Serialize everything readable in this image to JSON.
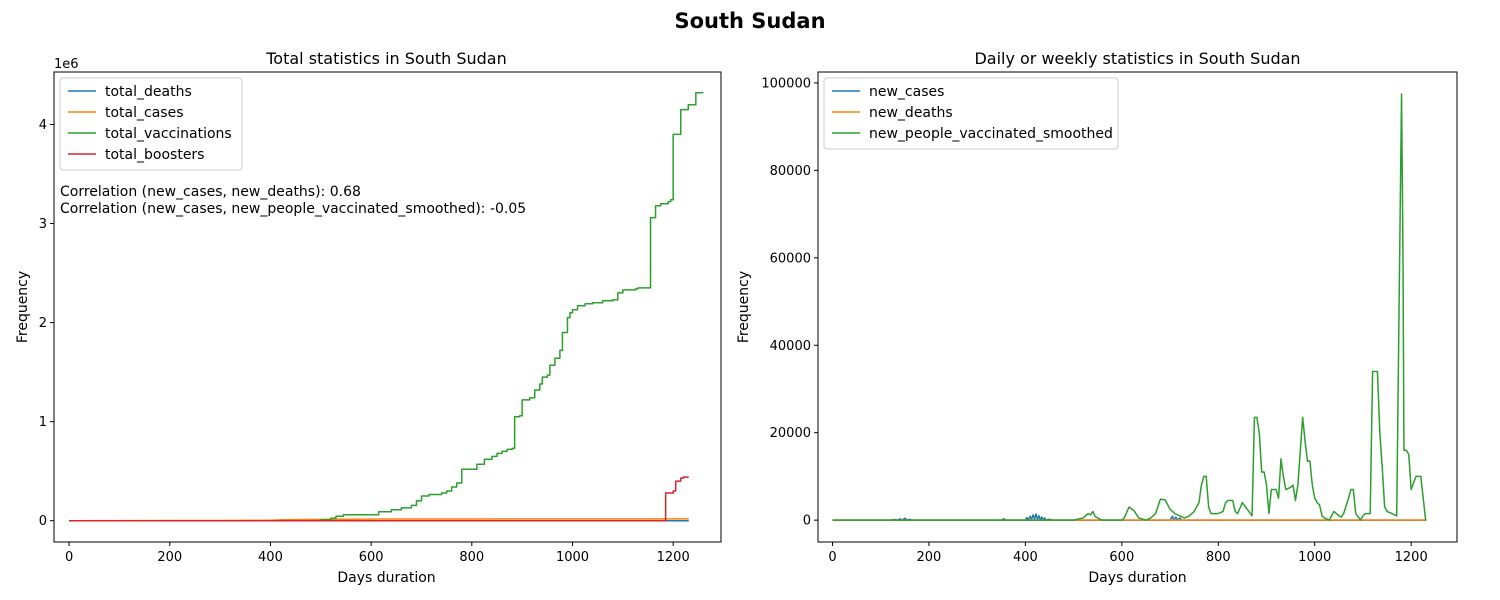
{
  "figure": {
    "suptitle": "South Sudan"
  },
  "chart_data": [
    {
      "type": "line",
      "title": "Total statistics in South Sudan",
      "xlabel": "Days duration",
      "ylabel": "Frequency",
      "y_offset_label": "1e6",
      "xlim": [
        -30,
        1295
      ],
      "ylim": [
        -215000,
        4530000
      ],
      "x_ticks": [
        0,
        200,
        400,
        600,
        800,
        1000,
        1200
      ],
      "y_ticks": [
        0,
        1000000,
        2000000,
        3000000,
        4000000
      ],
      "y_tick_labels": [
        "0",
        "1",
        "2",
        "3",
        "4"
      ],
      "legend_position": "upper-left",
      "annotations": [
        "Correlation (new_cases, new_deaths): 0.68",
        "Correlation (new_cases, new_people_vaccinated_smoothed): -0.05"
      ],
      "grid": false,
      "series": [
        {
          "name": "total_deaths",
          "color": "#1f77b4",
          "step": false,
          "points": [
            [
              0,
              0
            ],
            [
              300,
              0
            ],
            [
              600,
              0
            ],
            [
              900,
              0
            ],
            [
              1200,
              0
            ],
            [
              1231,
              0
            ]
          ]
        },
        {
          "name": "total_cases",
          "color": "#ff7f0e",
          "step": false,
          "points": [
            [
              0,
              0
            ],
            [
              100,
              500
            ],
            [
              200,
              1500
            ],
            [
              300,
              2500
            ],
            [
              400,
              5000
            ],
            [
              420,
              9500
            ],
            [
              500,
              13000
            ],
            [
              600,
              16500
            ],
            [
              700,
              17500
            ],
            [
              800,
              17800
            ],
            [
              1000,
              18200
            ],
            [
              1231,
              18400
            ]
          ]
        },
        {
          "name": "total_vaccinations",
          "color": "#2ca02c",
          "step": true,
          "points": [
            [
              0,
              0
            ],
            [
              400,
              0
            ],
            [
              500,
              10000
            ],
            [
              520,
              25000
            ],
            [
              530,
              45000
            ],
            [
              545,
              60000
            ],
            [
              600,
              60000
            ],
            [
              615,
              90000
            ],
            [
              640,
              110000
            ],
            [
              660,
              130000
            ],
            [
              680,
              155000
            ],
            [
              690,
              200000
            ],
            [
              700,
              250000
            ],
            [
              715,
              265000
            ],
            [
              740,
              280000
            ],
            [
              750,
              300000
            ],
            [
              760,
              340000
            ],
            [
              770,
              380000
            ],
            [
              780,
              520000
            ],
            [
              800,
              520000
            ],
            [
              810,
              570000
            ],
            [
              825,
              620000
            ],
            [
              840,
              650000
            ],
            [
              850,
              680000
            ],
            [
              860,
              700000
            ],
            [
              870,
              720000
            ],
            [
              880,
              730000
            ],
            [
              885,
              1050000
            ],
            [
              895,
              1060000
            ],
            [
              900,
              1220000
            ],
            [
              915,
              1240000
            ],
            [
              925,
              1320000
            ],
            [
              935,
              1380000
            ],
            [
              940,
              1450000
            ],
            [
              950,
              1470000
            ],
            [
              955,
              1570000
            ],
            [
              965,
              1640000
            ],
            [
              975,
              1720000
            ],
            [
              980,
              1900000
            ],
            [
              990,
              2050000
            ],
            [
              995,
              2100000
            ],
            [
              1000,
              2130000
            ],
            [
              1010,
              2170000
            ],
            [
              1025,
              2190000
            ],
            [
              1040,
              2200000
            ],
            [
              1060,
              2220000
            ],
            [
              1080,
              2230000
            ],
            [
              1090,
              2300000
            ],
            [
              1100,
              2330000
            ],
            [
              1125,
              2340000
            ],
            [
              1130,
              2350000
            ],
            [
              1150,
              2350000
            ],
            [
              1155,
              3060000
            ],
            [
              1165,
              3180000
            ],
            [
              1175,
              3200000
            ],
            [
              1190,
              3220000
            ],
            [
              1195,
              3240000
            ],
            [
              1200,
              3900000
            ],
            [
              1215,
              4150000
            ],
            [
              1230,
              4200000
            ],
            [
              1245,
              4320000
            ],
            [
              1260,
              4320000
            ]
          ]
        },
        {
          "name": "total_boosters",
          "color": "#d62728",
          "step": true,
          "points": [
            [
              0,
              0
            ],
            [
              1183,
              0
            ],
            [
              1185,
              280000
            ],
            [
              1200,
              300000
            ],
            [
              1205,
              400000
            ],
            [
              1215,
              430000
            ],
            [
              1220,
              440000
            ],
            [
              1231,
              440000
            ]
          ]
        }
      ]
    },
    {
      "type": "line",
      "title": "Daily or weekly statistics in South Sudan",
      "xlabel": "Days duration",
      "ylabel": "Frequency",
      "xlim": [
        -30,
        1295
      ],
      "ylim": [
        -5000,
        102500
      ],
      "x_ticks": [
        0,
        200,
        400,
        600,
        800,
        1000,
        1200
      ],
      "y_ticks": [
        0,
        20000,
        40000,
        60000,
        80000,
        100000
      ],
      "y_tick_labels": [
        "0",
        "20000",
        "40000",
        "60000",
        "80000",
        "100000"
      ],
      "legend_position": "upper-left",
      "grid": false,
      "series": [
        {
          "name": "new_cases",
          "color": "#1f77b4",
          "step": false,
          "points": [
            [
              0,
              0
            ],
            [
              120,
              0
            ],
            [
              130,
              150
            ],
            [
              135,
              0
            ],
            [
              140,
              300
            ],
            [
              145,
              0
            ],
            [
              150,
              450
            ],
            [
              155,
              0
            ],
            [
              160,
              200
            ],
            [
              165,
              0
            ],
            [
              350,
              0
            ],
            [
              355,
              300
            ],
            [
              360,
              0
            ],
            [
              400,
              0
            ],
            [
              403,
              600
            ],
            [
              406,
              0
            ],
            [
              410,
              900
            ],
            [
              413,
              200
            ],
            [
              416,
              1200
            ],
            [
              419,
              300
            ],
            [
              422,
              1400
            ],
            [
              425,
              200
            ],
            [
              428,
              1000
            ],
            [
              431,
              100
            ],
            [
              434,
              700
            ],
            [
              437,
              0
            ],
            [
              440,
              500
            ],
            [
              443,
              0
            ],
            [
              450,
              200
            ],
            [
              455,
              0
            ],
            [
              700,
              0
            ],
            [
              705,
              900
            ],
            [
              708,
              0
            ],
            [
              712,
              700
            ],
            [
              715,
              0
            ],
            [
              720,
              500
            ],
            [
              725,
              0
            ],
            [
              1231,
              0
            ]
          ]
        },
        {
          "name": "new_deaths",
          "color": "#ff7f0e",
          "step": false,
          "points": [
            [
              0,
              0
            ],
            [
              400,
              0
            ],
            [
              410,
              20
            ],
            [
              420,
              0
            ],
            [
              1231,
              0
            ]
          ]
        },
        {
          "name": "new_people_vaccinated_smoothed",
          "color": "#2ca02c",
          "step": false,
          "points": [
            [
              0,
              0
            ],
            [
              500,
              0
            ],
            [
              520,
              500
            ],
            [
              530,
              1500
            ],
            [
              535,
              1200
            ],
            [
              540,
              2000
            ],
            [
              545,
              800
            ],
            [
              550,
              500
            ],
            [
              555,
              200
            ],
            [
              560,
              0
            ],
            [
              600,
              0
            ],
            [
              605,
              500
            ],
            [
              615,
              3000
            ],
            [
              625,
              2200
            ],
            [
              635,
              500
            ],
            [
              650,
              0
            ],
            [
              660,
              500
            ],
            [
              670,
              1500
            ],
            [
              680,
              4800
            ],
            [
              690,
              4600
            ],
            [
              700,
              2500
            ],
            [
              710,
              1500
            ],
            [
              720,
              1000
            ],
            [
              730,
              500
            ],
            [
              740,
              1000
            ],
            [
              750,
              2000
            ],
            [
              760,
              4000
            ],
            [
              765,
              8000
            ],
            [
              770,
              10000
            ],
            [
              775,
              10000
            ],
            [
              780,
              3000
            ],
            [
              785,
              1500
            ],
            [
              800,
              1500
            ],
            [
              810,
              2000
            ],
            [
              815,
              4000
            ],
            [
              820,
              4500
            ],
            [
              830,
              4500
            ],
            [
              835,
              2000
            ],
            [
              840,
              1500
            ],
            [
              850,
              4000
            ],
            [
              860,
              2500
            ],
            [
              870,
              1000
            ],
            [
              875,
              23500
            ],
            [
              880,
              23500
            ],
            [
              885,
              20000
            ],
            [
              890,
              11000
            ],
            [
              895,
              11000
            ],
            [
              900,
              8000
            ],
            [
              905,
              1500
            ],
            [
              910,
              7000
            ],
            [
              920,
              7000
            ],
            [
              925,
              5000
            ],
            [
              930,
              14000
            ],
            [
              935,
              10000
            ],
            [
              940,
              7000
            ],
            [
              950,
              7500
            ],
            [
              955,
              8000
            ],
            [
              960,
              4500
            ],
            [
              965,
              8000
            ],
            [
              975,
              23500
            ],
            [
              980,
              18000
            ],
            [
              985,
              13500
            ],
            [
              990,
              13500
            ],
            [
              995,
              8000
            ],
            [
              1000,
              5000
            ],
            [
              1005,
              4000
            ],
            [
              1010,
              3500
            ],
            [
              1015,
              1000
            ],
            [
              1020,
              500
            ],
            [
              1030,
              0
            ],
            [
              1040,
              2000
            ],
            [
              1050,
              1000
            ],
            [
              1055,
              700
            ],
            [
              1060,
              1500
            ],
            [
              1070,
              5000
            ],
            [
              1075,
              7000
            ],
            [
              1080,
              7000
            ],
            [
              1085,
              1500
            ],
            [
              1095,
              0
            ],
            [
              1100,
              1000
            ],
            [
              1105,
              1500
            ],
            [
              1115,
              1500
            ],
            [
              1120,
              34000
            ],
            [
              1130,
              34000
            ],
            [
              1135,
              20000
            ],
            [
              1140,
              12000
            ],
            [
              1145,
              3000
            ],
            [
              1150,
              2000
            ],
            [
              1160,
              1500
            ],
            [
              1170,
              1000
            ],
            [
              1175,
              50000
            ],
            [
              1180,
              97500
            ],
            [
              1183,
              60000
            ],
            [
              1185,
              16000
            ],
            [
              1190,
              16000
            ],
            [
              1195,
              15000
            ],
            [
              1200,
              7000
            ],
            [
              1210,
              10000
            ],
            [
              1220,
              10000
            ],
            [
              1225,
              5000
            ],
            [
              1230,
              0
            ],
            [
              1231,
              0
            ]
          ]
        }
      ]
    }
  ]
}
